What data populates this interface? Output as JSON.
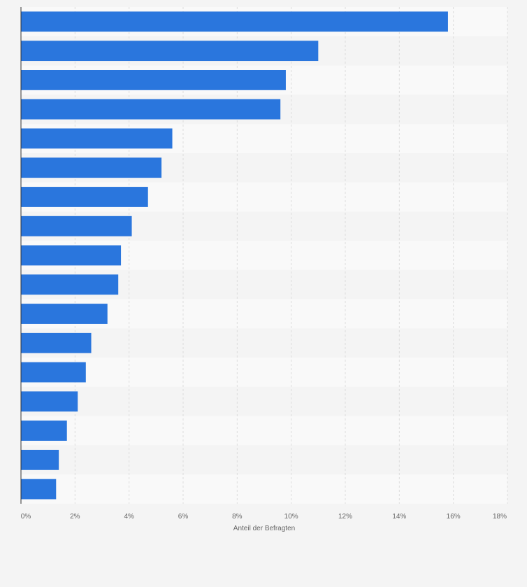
{
  "chart_data": {
    "type": "bar",
    "orientation": "horizontal",
    "title": "",
    "xlabel": "Anteil der Befragten",
    "ylabel": "",
    "xlim": [
      0,
      18
    ],
    "x_ticks": [
      0,
      2,
      4,
      6,
      8,
      10,
      12,
      14,
      16,
      18
    ],
    "x_tick_labels": [
      "0%",
      "2%",
      "4%",
      "6%",
      "8%",
      "10%",
      "12%",
      "14%",
      "16%",
      "18%"
    ],
    "categories": [
      "",
      "",
      "",
      "",
      "",
      "",
      "",
      "",
      "",
      "",
      "",
      "",
      "",
      "",
      "",
      "",
      ""
    ],
    "values": [
      15.8,
      11.0,
      9.8,
      9.6,
      5.6,
      5.2,
      4.7,
      4.1,
      3.7,
      3.6,
      3.2,
      2.6,
      2.4,
      2.1,
      1.7,
      1.4,
      1.3
    ],
    "grid": true,
    "colors": {
      "bar": "#2a76dd",
      "band_light": "#f9f9f9",
      "band_dark": "#f4f4f4",
      "grid": "#dddddd",
      "axis": "#333333",
      "text": "#666666"
    }
  }
}
